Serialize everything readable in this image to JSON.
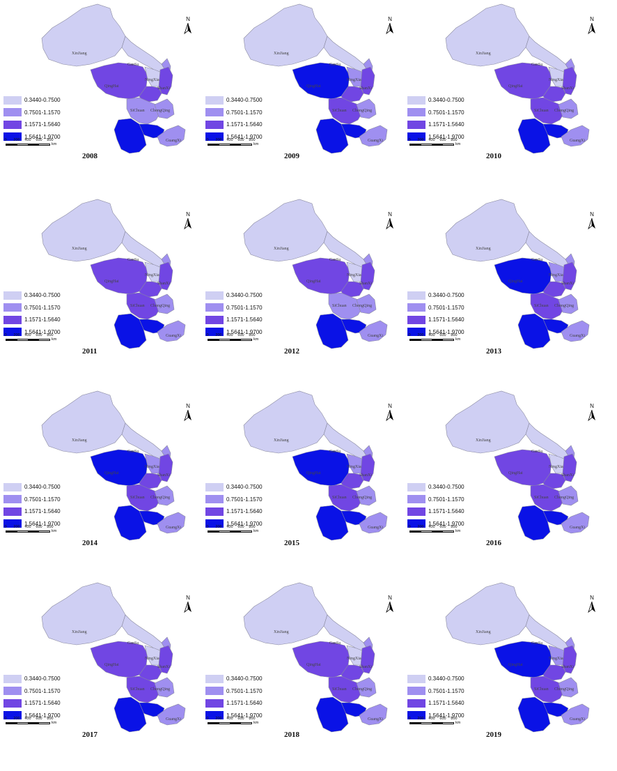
{
  "legend": {
    "classes": [
      {
        "label": "0.3440-0.7500",
        "color": "#cfcff3"
      },
      {
        "label": "0.7501-1.1570",
        "color": "#9f8ff0"
      },
      {
        "label": "1.1571-1.5640",
        "color": "#7146e3"
      },
      {
        "label": "1.5641-1.9700",
        "color": "#0a12e6"
      }
    ]
  },
  "scale": {
    "ticks": [
      "0",
      "200",
      "400",
      "600",
      "800"
    ],
    "unit": "km"
  },
  "north_label": "N",
  "region_labels": {
    "xinjiang": "XinJiang",
    "gansu": "GanSu",
    "qinghai": "QingHai",
    "ningxia": "NingXia",
    "shaanxi": "ShanXi",
    "sichuan": "SiChuan",
    "chongqing": "ChongQing",
    "guangxi": "GuangXi"
  },
  "maps": [
    {
      "year": "2008",
      "classes": {
        "xinjiang": 0,
        "gansu": 0,
        "qinghai": 2,
        "ningxia": 0,
        "shaanxi": 2,
        "innermongolia": 1,
        "tibet": 2,
        "sichuan": 1,
        "chongqing": 1,
        "guizhou": 3,
        "yunnan": 3,
        "guangxi": 1
      }
    },
    {
      "year": "2009",
      "classes": {
        "xinjiang": 0,
        "gansu": 0,
        "qinghai": 3,
        "ningxia": 1,
        "shaanxi": 2,
        "innermongolia": 1,
        "tibet": 2,
        "sichuan": 2,
        "chongqing": 1,
        "guizhou": 3,
        "yunnan": 3,
        "guangxi": 1
      }
    },
    {
      "year": "2010",
      "classes": {
        "xinjiang": 0,
        "gansu": 0,
        "qinghai": 2,
        "ningxia": 0,
        "shaanxi": 2,
        "innermongolia": 1,
        "tibet": 2,
        "sichuan": 2,
        "chongqing": 1,
        "guizhou": 3,
        "yunnan": 3,
        "guangxi": 1
      }
    },
    {
      "year": "2011",
      "classes": {
        "xinjiang": 0,
        "gansu": 0,
        "qinghai": 2,
        "ningxia": 0,
        "shaanxi": 2,
        "innermongolia": 1,
        "tibet": 2,
        "sichuan": 2,
        "chongqing": 1,
        "guizhou": 3,
        "yunnan": 3,
        "guangxi": 1
      }
    },
    {
      "year": "2012",
      "classes": {
        "xinjiang": 0,
        "gansu": 0,
        "qinghai": 2,
        "ningxia": 0,
        "shaanxi": 2,
        "innermongolia": 1,
        "tibet": 2,
        "sichuan": 1,
        "chongqing": 1,
        "guizhou": 3,
        "yunnan": 3,
        "guangxi": 1
      }
    },
    {
      "year": "2013",
      "classes": {
        "xinjiang": 0,
        "gansu": 0,
        "qinghai": 3,
        "ningxia": 1,
        "shaanxi": 2,
        "innermongolia": 1,
        "tibet": 2,
        "sichuan": 2,
        "chongqing": 1,
        "guizhou": 3,
        "yunnan": 3,
        "guangxi": 1
      }
    },
    {
      "year": "2014",
      "classes": {
        "xinjiang": 0,
        "gansu": 0,
        "qinghai": 3,
        "ningxia": 1,
        "shaanxi": 2,
        "innermongolia": 1,
        "tibet": 2,
        "sichuan": 2,
        "chongqing": 1,
        "guizhou": 3,
        "yunnan": 3,
        "guangxi": 1
      }
    },
    {
      "year": "2015",
      "classes": {
        "xinjiang": 0,
        "gansu": 0,
        "qinghai": 3,
        "ningxia": 1,
        "shaanxi": 2,
        "innermongolia": 1,
        "tibet": 2,
        "sichuan": 2,
        "chongqing": 1,
        "guizhou": 3,
        "yunnan": 3,
        "guangxi": 1
      }
    },
    {
      "year": "2016",
      "classes": {
        "xinjiang": 0,
        "gansu": 0,
        "qinghai": 2,
        "ningxia": 0,
        "shaanxi": 2,
        "innermongolia": 1,
        "tibet": 2,
        "sichuan": 2,
        "chongqing": 1,
        "guizhou": 3,
        "yunnan": 3,
        "guangxi": 1
      }
    },
    {
      "year": "2017",
      "classes": {
        "xinjiang": 0,
        "gansu": 0,
        "qinghai": 2,
        "ningxia": 0,
        "shaanxi": 2,
        "innermongolia": 1,
        "tibet": 2,
        "sichuan": 2,
        "chongqing": 1,
        "guizhou": 3,
        "yunnan": 3,
        "guangxi": 1
      }
    },
    {
      "year": "2018",
      "classes": {
        "xinjiang": 0,
        "gansu": 0,
        "qinghai": 2,
        "ningxia": 0,
        "shaanxi": 2,
        "innermongolia": 1,
        "tibet": 2,
        "sichuan": 2,
        "chongqing": 1,
        "guizhou": 3,
        "yunnan": 3,
        "guangxi": 1
      }
    },
    {
      "year": "2019",
      "classes": {
        "xinjiang": 0,
        "gansu": 0,
        "qinghai": 3,
        "ningxia": 1,
        "shaanxi": 2,
        "innermongolia": 1,
        "tibet": 2,
        "sichuan": 2,
        "chongqing": 1,
        "guizhou": 3,
        "yunnan": 3,
        "guangxi": 1
      }
    }
  ]
}
